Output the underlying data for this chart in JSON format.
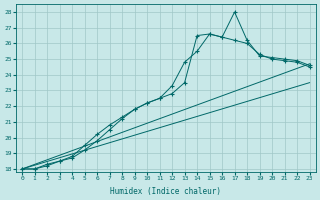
{
  "xlabel": "Humidex (Indice chaleur)",
  "bg_color": "#c8e8e8",
  "grid_color": "#a0c8c8",
  "line_color": "#006868",
  "xlim": [
    -0.5,
    23.5
  ],
  "ylim": [
    17.8,
    28.5
  ],
  "yticks": [
    18,
    19,
    20,
    21,
    22,
    23,
    24,
    25,
    26,
    27,
    28
  ],
  "xticks": [
    0,
    1,
    2,
    3,
    4,
    5,
    6,
    7,
    8,
    9,
    10,
    11,
    12,
    13,
    14,
    15,
    16,
    17,
    18,
    19,
    20,
    21,
    22,
    23
  ],
  "series": [
    {
      "x": [
        0,
        1,
        2,
        3,
        4,
        5,
        6,
        7,
        8,
        9,
        10,
        11,
        12,
        13,
        14,
        15,
        16,
        17,
        18,
        19,
        20,
        21,
        22,
        23
      ],
      "y": [
        18,
        18,
        18.3,
        18.5,
        18.7,
        19.2,
        19.8,
        20.5,
        21.2,
        21.8,
        22.2,
        22.5,
        23.3,
        24.8,
        25.5,
        26.6,
        26.4,
        28.0,
        26.2,
        25.2,
        25.1,
        25.0,
        24.9,
        24.6
      ],
      "marker": true
    },
    {
      "x": [
        0,
        1,
        2,
        3,
        4,
        5,
        6,
        7,
        8,
        9,
        10,
        11,
        12,
        13,
        14,
        15,
        16,
        17,
        18,
        19,
        20,
        21,
        22,
        23
      ],
      "y": [
        18,
        18,
        18.2,
        18.5,
        18.8,
        19.5,
        20.2,
        20.8,
        21.3,
        21.8,
        22.2,
        22.5,
        22.8,
        23.5,
        26.5,
        26.6,
        26.4,
        26.2,
        26.0,
        25.3,
        25.0,
        24.9,
        24.8,
        24.5
      ],
      "marker": true
    },
    {
      "x": [
        0,
        23
      ],
      "y": [
        18,
        24.7
      ],
      "marker": false
    },
    {
      "x": [
        0,
        23
      ],
      "y": [
        18,
        23.5
      ],
      "marker": false
    }
  ]
}
